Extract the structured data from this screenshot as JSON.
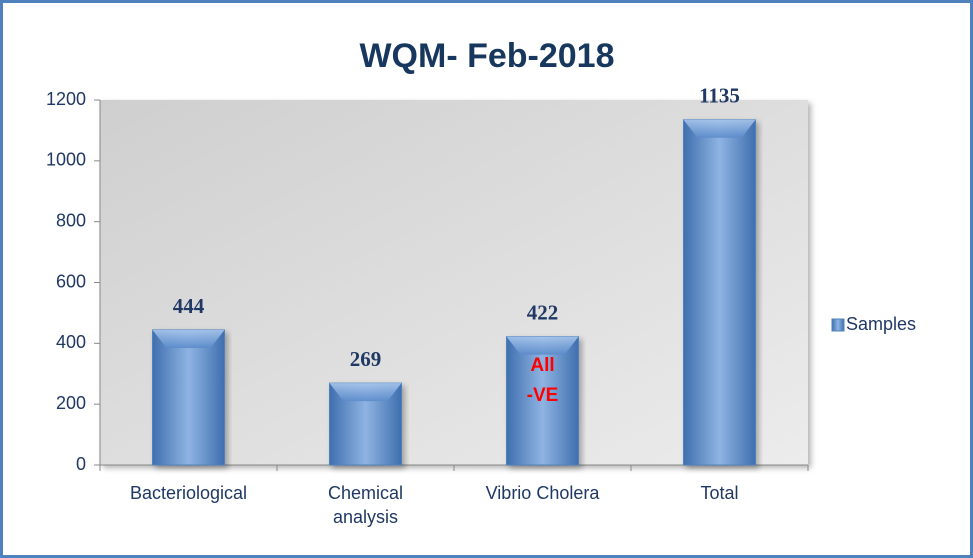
{
  "chart_data": {
    "type": "bar",
    "title": "WQM- Feb-2018",
    "categories": [
      "Bacteriological",
      "Chemical analysis",
      "Vibrio Cholera",
      "Total"
    ],
    "series": [
      {
        "name": "Samples",
        "color": "#4f81bd",
        "values": [
          444,
          269,
          422,
          1135
        ]
      }
    ],
    "annotation": [
      "All",
      "-VE"
    ],
    "ylim": [
      0,
      1200
    ],
    "yticks": [
      0,
      200,
      400,
      600,
      800,
      1000,
      1200
    ],
    "legend": "right"
  }
}
